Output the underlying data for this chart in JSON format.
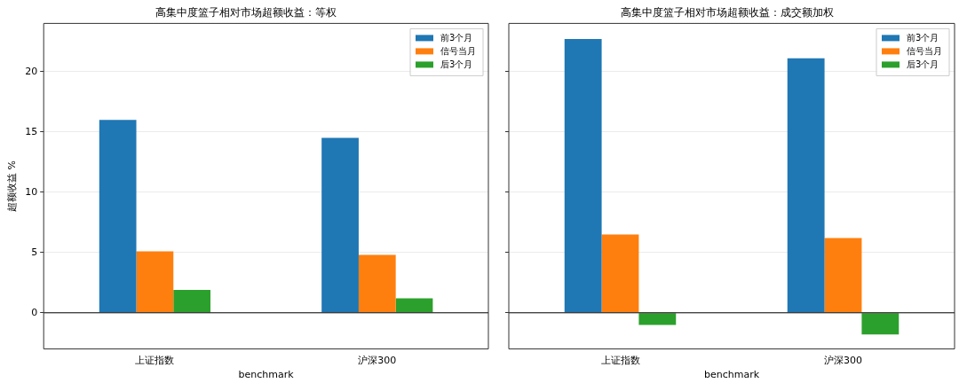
{
  "chart_data": [
    {
      "type": "bar",
      "title": "高集中度篮子相对市场超额收益：等权",
      "xlabel": "benchmark",
      "ylabel": "超额收益 %",
      "categories": [
        "上证指数",
        "沪深300"
      ],
      "series": [
        {
          "name": "前3个月",
          "color": "#1f77b4",
          "values": [
            16.0,
            14.5
          ]
        },
        {
          "name": "信号当月",
          "color": "#ff7f0e",
          "values": [
            5.1,
            4.8
          ]
        },
        {
          "name": "后3个月",
          "color": "#2ca02c",
          "values": [
            1.9,
            1.2
          ]
        }
      ],
      "ylim": [
        -3,
        24
      ],
      "yticks": [
        0,
        5,
        10,
        15,
        20
      ],
      "grid": "y",
      "legend": "top right",
      "ref_lines": [
        {
          "axis": "y",
          "value": 0,
          "color": "#000000"
        }
      ]
    },
    {
      "type": "bar",
      "title": "高集中度篮子相对市场超额收益：成交额加权",
      "xlabel": "benchmark",
      "categories": [
        "上证指数",
        "沪深300"
      ],
      "series": [
        {
          "name": "前3个月",
          "color": "#1f77b4",
          "values": [
            22.7,
            21.1
          ]
        },
        {
          "name": "信号当月",
          "color": "#ff7f0e",
          "values": [
            6.5,
            6.2
          ]
        },
        {
          "name": "后3个月",
          "color": "#2ca02c",
          "values": [
            -1.0,
            -1.8
          ]
        }
      ],
      "ylim": [
        -3,
        24
      ],
      "yticks": [
        0,
        5,
        10,
        15,
        20
      ],
      "grid": "y",
      "legend": "top right",
      "tick_labels": "x",
      "ref_lines": [
        {
          "axis": "y",
          "value": 0,
          "color": "#000000"
        }
      ]
    }
  ]
}
